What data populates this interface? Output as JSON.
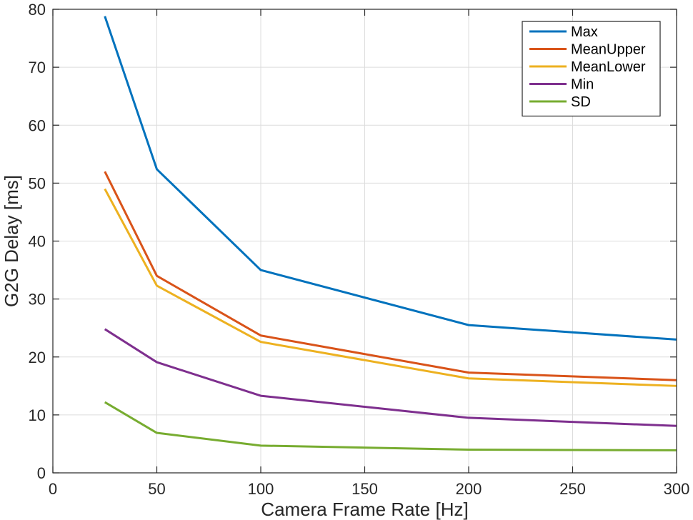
{
  "chart_data": {
    "type": "line",
    "title": "",
    "xlabel": "Camera Frame Rate [Hz]",
    "ylabel": "G2G Delay [ms]",
    "xlim": [
      0,
      300
    ],
    "ylim": [
      0,
      80
    ],
    "xticks": [
      0,
      50,
      100,
      150,
      200,
      250,
      300
    ],
    "yticks": [
      0,
      10,
      20,
      30,
      40,
      50,
      60,
      70,
      80
    ],
    "grid": true,
    "legend_position": "top-right",
    "x": [
      25,
      50,
      100,
      200,
      300
    ],
    "series": [
      {
        "name": "Max",
        "color": "#0072BD",
        "values": [
          78.8,
          52.4,
          35.0,
          25.5,
          23.0
        ]
      },
      {
        "name": "MeanUpper",
        "color": "#D95319",
        "values": [
          52.0,
          34.0,
          23.7,
          17.3,
          16.0
        ]
      },
      {
        "name": "MeanLower",
        "color": "#EDB120",
        "values": [
          49.0,
          32.3,
          22.6,
          16.3,
          15.0
        ]
      },
      {
        "name": "Min",
        "color": "#7E2F8E",
        "values": [
          24.8,
          19.1,
          13.3,
          9.5,
          8.1
        ]
      },
      {
        "name": "SD",
        "color": "#77AC30",
        "values": [
          12.2,
          6.9,
          4.7,
          4.0,
          3.9
        ]
      }
    ]
  }
}
